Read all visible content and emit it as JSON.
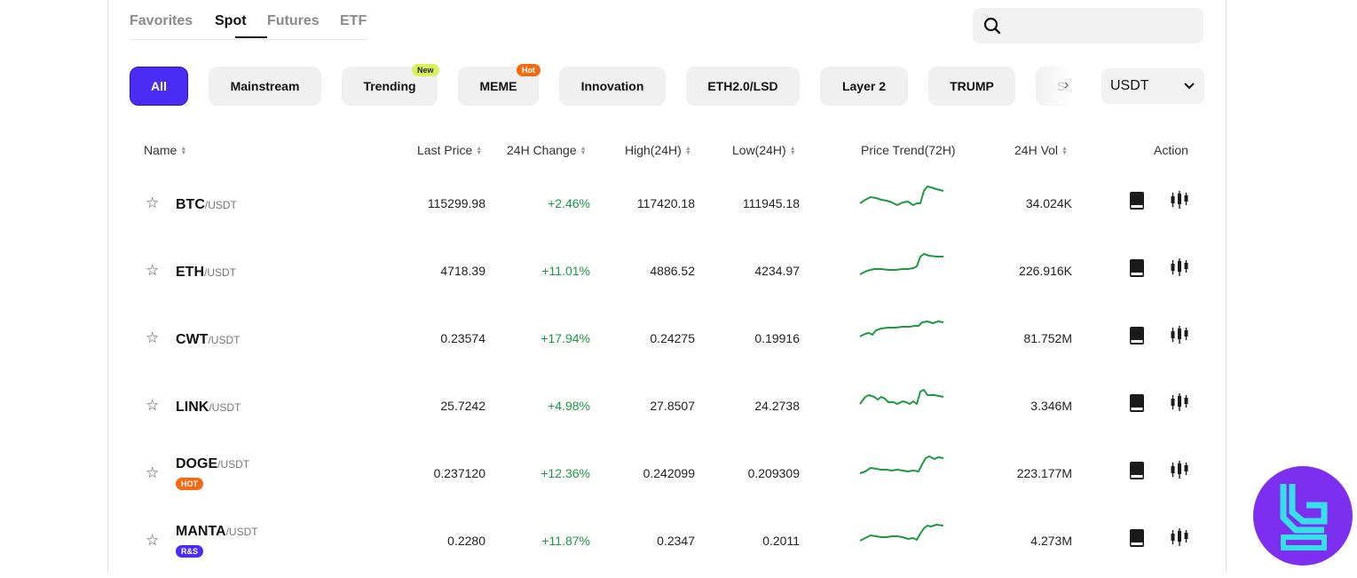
{
  "tabs": [
    "Favorites",
    "Spot",
    "Futures",
    "ETF"
  ],
  "categories": [
    "All",
    "Mainstream",
    "Trending",
    "MEME",
    "Innovation",
    "ETH2.0/LSD",
    "Layer 2",
    "TRUMP"
  ],
  "category_badges": {
    "new": "New",
    "hot": "Hot"
  },
  "overflow_category_hint": "S",
  "currency": "USDT",
  "columns": {
    "name": "Name",
    "last_price": "Last Price",
    "change": "24H Change",
    "high": "High(24H)",
    "low": "Low(24H)",
    "trend": "Price Trend(72H)",
    "vol": "24H Vol",
    "action": "Action"
  },
  "rows": [
    {
      "base": "BTC",
      "quote": "/USDT",
      "tag": "",
      "last": "115299.98",
      "change": "+2.46%",
      "high": "117420.18",
      "low": "111945.18",
      "vol": "34.024K"
    },
    {
      "base": "ETH",
      "quote": "/USDT",
      "tag": "",
      "last": "4718.39",
      "change": "+11.01%",
      "high": "4886.52",
      "low": "4234.97",
      "vol": "226.916K"
    },
    {
      "base": "CWT",
      "quote": "/USDT",
      "tag": "",
      "last": "0.23574",
      "change": "+17.94%",
      "high": "0.24275",
      "low": "0.19916",
      "vol": "81.752M"
    },
    {
      "base": "LINK",
      "quote": "/USDT",
      "tag": "",
      "last": "25.7242",
      "change": "+4.98%",
      "high": "27.8507",
      "low": "24.2738",
      "vol": "3.346M"
    },
    {
      "base": "DOGE",
      "quote": "/USDT",
      "tag": "HOT",
      "last": "0.237120",
      "change": "+12.36%",
      "high": "0.242099",
      "low": "0.209309",
      "vol": "223.177M"
    },
    {
      "base": "MANTA",
      "quote": "/USDT",
      "tag": "R&S",
      "last": "0.2280",
      "change": "+11.87%",
      "high": "0.2347",
      "low": "0.2011",
      "vol": "4.273M"
    }
  ],
  "colors": {
    "accent": "#4b2cf5",
    "positive": "#1d9a40",
    "hot": "#f26a12",
    "new": "#d9f25a"
  },
  "icons": [
    "search-icon",
    "star-icon",
    "book-icon",
    "candlestick-icon",
    "chevron-right-icon",
    "chevron-down-icon",
    "sort-icon"
  ]
}
